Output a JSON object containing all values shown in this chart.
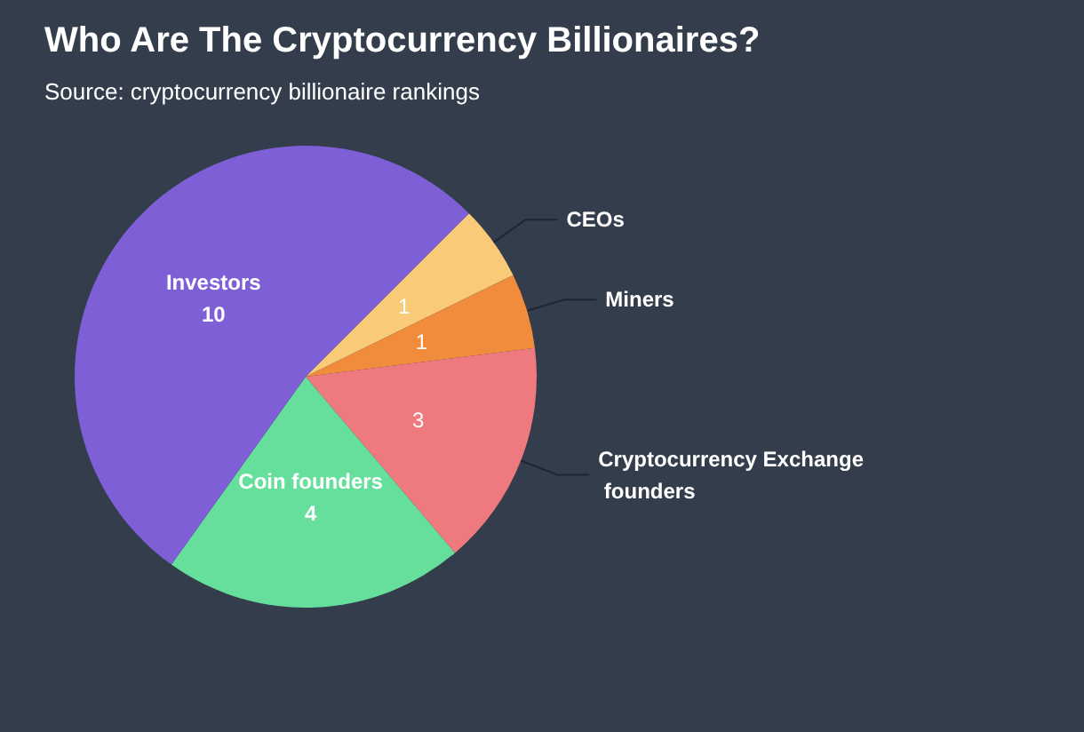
{
  "chart_data": {
    "type": "pie",
    "title": "Who Are The Cryptocurrency Billionaires?",
    "subtitle": "Source: cryptocurrency billionaire rankings",
    "categories": [
      "CEOs",
      "Miners",
      "Cryptocurrency Exchange founders",
      "Coin founders",
      "Investors"
    ],
    "values": [
      1,
      1,
      3,
      4,
      10
    ],
    "colors": [
      "#f9cb79",
      "#f08c3c",
      "#ee7a7f",
      "#66df9c",
      "#7f5fd6"
    ],
    "data_labels": true,
    "legend": false
  }
}
